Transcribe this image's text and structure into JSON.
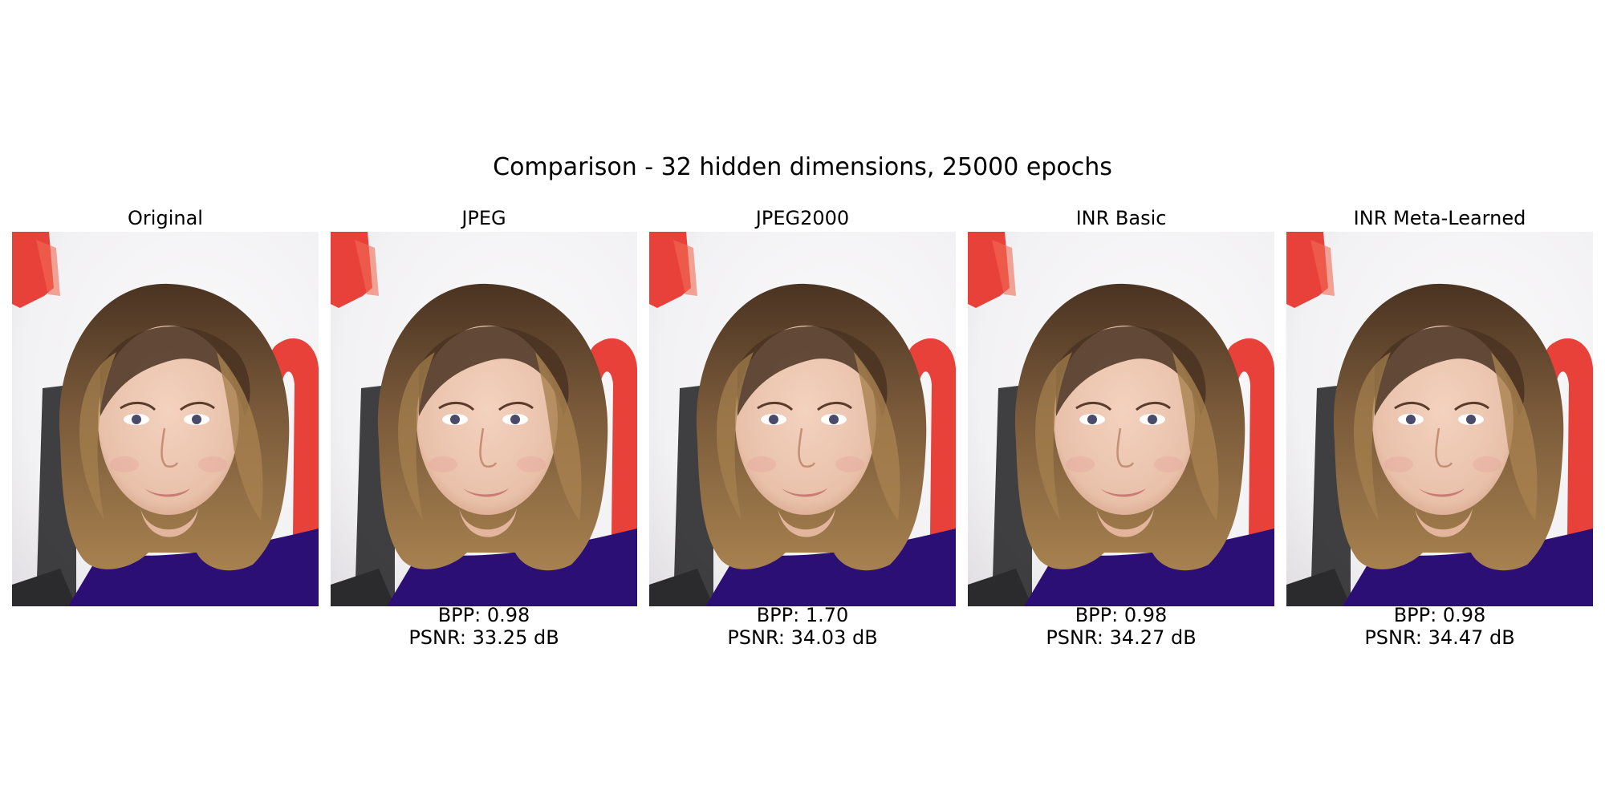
{
  "figure": {
    "title": "Comparison - 32 hidden dimensions, 25000 epochs"
  },
  "colors": {
    "background_wall": "#f2f1f3",
    "red_sign": "#e8413a",
    "hair_dark": "#4a3322",
    "hair_light": "#a7814f",
    "skin": "#e9c1aa",
    "dress": "#2c0f74",
    "chair": "#2b2b2d"
  },
  "panels": [
    {
      "title": "Original",
      "bpp": "",
      "psnr": "",
      "image_label": "portrait-original"
    },
    {
      "title": "JPEG",
      "bpp": "BPP: 0.98",
      "psnr": "PSNR: 33.25 dB",
      "image_label": "portrait-jpeg"
    },
    {
      "title": "JPEG2000",
      "bpp": "BPP: 1.70",
      "psnr": "PSNR: 34.03 dB",
      "image_label": "portrait-jpeg2000"
    },
    {
      "title": "INR Basic",
      "bpp": "BPP: 0.98",
      "psnr": "PSNR: 34.27 dB",
      "image_label": "portrait-inr-basic"
    },
    {
      "title": "INR Meta-Learned",
      "bpp": "BPP: 0.98",
      "psnr": "PSNR: 34.47 dB",
      "image_label": "portrait-inr-meta-learned"
    }
  ]
}
